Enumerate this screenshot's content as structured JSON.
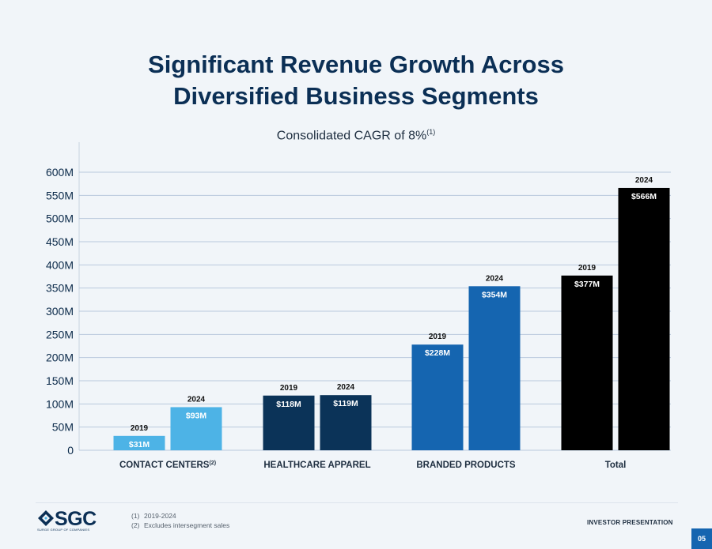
{
  "title_line1": "Significant Revenue Growth Across",
  "title_line2": "Diversified Business Segments",
  "footer": {
    "notes": [
      {
        "num": "(1)",
        "text": "2019-2024"
      },
      {
        "num": "(2)",
        "text": "Excludes intersegment sales"
      }
    ],
    "brand": "SGC",
    "brand_sub": "SURGE GROUP OF COMPANIES",
    "label": "INVESTOR PRESENTATION",
    "page": "05"
  },
  "chart_data": {
    "type": "bar",
    "title": "Consolidated CAGR of 8%",
    "title_sup": "(1)",
    "xlabel": "",
    "ylabel": "",
    "ylim": [
      0,
      600
    ],
    "yticks": [
      0,
      50,
      100,
      150,
      200,
      250,
      300,
      350,
      400,
      450,
      500,
      550,
      600
    ],
    "ytick_labels": [
      "0",
      "50M",
      "100M",
      "150M",
      "200M",
      "250M",
      "300M",
      "350M",
      "400M",
      "450M",
      "500M",
      "550M",
      "600M"
    ],
    "grid": true,
    "categories": [
      {
        "name": "CONTACT CENTERS",
        "sup": "(2)"
      },
      {
        "name": "HEALTHCARE APPAREL",
        "sup": ""
      },
      {
        "name": "BRANDED PRODUCTS",
        "sup": ""
      },
      {
        "name": "Total",
        "sup": ""
      }
    ],
    "series": [
      {
        "name": "2019",
        "values": [
          31,
          118,
          228,
          377
        ],
        "labels": [
          "$31M",
          "$118M",
          "$228M",
          "$377M"
        ]
      },
      {
        "name": "2024",
        "values": [
          93,
          119,
          354,
          566
        ],
        "labels": [
          "$93M",
          "$119M",
          "$354M",
          "$566M"
        ]
      }
    ],
    "colors": [
      "#4db3e6",
      "#0b3358",
      "#1565b0",
      "#000000"
    ]
  }
}
